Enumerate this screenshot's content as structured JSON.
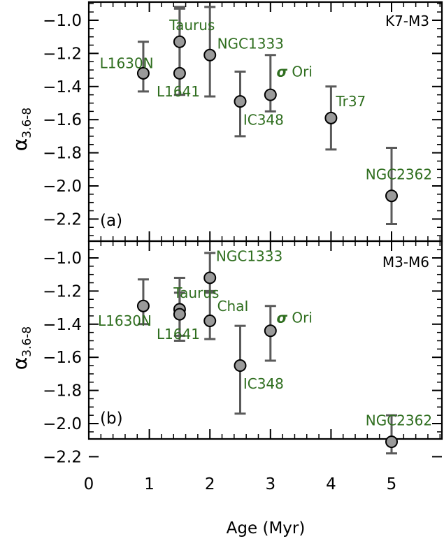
{
  "colors": {
    "label_green": "#2f6e1f",
    "errorbar": "#5a5a5a",
    "marker_fill": "#9a9a9a",
    "axis": "#000000"
  },
  "x_axis": {
    "title": "Age (Myr)",
    "ticks": [
      "0",
      "1",
      "2",
      "3",
      "4",
      "5"
    ]
  },
  "y_ticks": [
    "-1.0",
    "-1.2",
    "-1.4",
    "-1.6",
    "-1.8",
    "-2.0",
    "-2.2"
  ],
  "chart_data": [
    {
      "type": "scatter",
      "panel_tag": "(a)",
      "corner_label": "K7-M3",
      "ylabel": "α3.6-8",
      "ylabel_main": "α",
      "ylabel_sub": "3.6-8",
      "xlim": [
        0,
        5.85
      ],
      "ylim": [
        -2.3,
        -0.9
      ],
      "points": [
        {
          "name": "L1630N",
          "x": 0.9,
          "y": -1.32,
          "err_low": 0.11,
          "err_high": 0.19
        },
        {
          "name": "Taurus",
          "x": 1.5,
          "y": -1.13,
          "err_low": 0.32,
          "err_high": 0.21
        },
        {
          "name": "L1641",
          "x": 1.5,
          "y": -1.32,
          "err_low": 0.13,
          "err_high": 0.39
        },
        {
          "name": "NGC1333",
          "x": 2.0,
          "y": -1.21,
          "err_low": 0.25,
          "err_high": 0.29
        },
        {
          "name": "IC348",
          "x": 2.5,
          "y": -1.49,
          "err_low": 0.21,
          "err_high": 0.18
        },
        {
          "name": "σ Ori",
          "x": 3.0,
          "y": -1.45,
          "err_low": 0.1,
          "err_high": 0.24
        },
        {
          "name": "Tr37",
          "x": 4.0,
          "y": -1.59,
          "err_low": 0.19,
          "err_high": 0.19
        },
        {
          "name": "NGC2362",
          "x": 5.0,
          "y": -2.06,
          "err_low": 0.17,
          "err_high": 0.29
        }
      ],
      "labels": [
        {
          "text": "L1630N",
          "x": 0.18,
          "y": -1.29
        },
        {
          "text": "Taurus",
          "x": 1.33,
          "y": -1.06
        },
        {
          "text": "L1641",
          "x": 1.12,
          "y": -1.46
        },
        {
          "text": "NGC1333",
          "x": 2.12,
          "y": -1.17
        },
        {
          "text": "IC348",
          "x": 2.55,
          "y": -1.63
        },
        {
          "text": "σ Ori",
          "x": 3.1,
          "y": -1.34
        },
        {
          "text": "Tr37",
          "x": 4.08,
          "y": -1.52
        },
        {
          "text": "NGC2362",
          "x": 4.57,
          "y": -1.96
        }
      ]
    },
    {
      "type": "scatter",
      "panel_tag": "(b)",
      "corner_label": "M3-M6",
      "ylabel": "α3.6-8",
      "ylabel_main": "α",
      "ylabel_sub": "3.6-8",
      "xlim": [
        0,
        5.85
      ],
      "ylim": [
        -2.3,
        -0.9
      ],
      "points": [
        {
          "name": "L1630N",
          "x": 0.9,
          "y": -1.29,
          "err_low": 0.11,
          "err_high": 0.16
        },
        {
          "name": "Taurus",
          "x": 1.5,
          "y": -1.31,
          "err_low": 0.19,
          "err_high": 0.19
        },
        {
          "name": "L1641",
          "x": 1.5,
          "y": -1.34,
          "err_low": 0.13,
          "err_high": 0.13
        },
        {
          "name": "NGC1333",
          "x": 2.0,
          "y": -1.12,
          "err_low": 0.08,
          "err_high": 0.15
        },
        {
          "name": "ChaI",
          "x": 2.0,
          "y": -1.38,
          "err_low": 0.11,
          "err_high": 0.17
        },
        {
          "name": "IC348",
          "x": 2.5,
          "y": -1.65,
          "err_low": 0.29,
          "err_high": 0.24
        },
        {
          "name": "σ Ori",
          "x": 3.0,
          "y": -1.44,
          "err_low": 0.18,
          "err_high": 0.15
        },
        {
          "name": "NGC2362",
          "x": 5.0,
          "y": -2.11,
          "err_low": 0.07,
          "err_high": 0.16
        }
      ],
      "labels": [
        {
          "text": "L1630N",
          "x": 0.15,
          "y": -1.41
        },
        {
          "text": "Taurus",
          "x": 1.4,
          "y": -1.24
        },
        {
          "text": "L1641",
          "x": 1.12,
          "y": -1.49
        },
        {
          "text": "NGC1333",
          "x": 2.1,
          "y": -1.02
        },
        {
          "text": "ChaI",
          "x": 2.12,
          "y": -1.32
        },
        {
          "text": "IC348",
          "x": 2.55,
          "y": -1.79
        },
        {
          "text": "σ Ori",
          "x": 3.1,
          "y": -1.39
        },
        {
          "text": "NGC2362",
          "x": 4.57,
          "y": -2.01
        }
      ]
    }
  ]
}
